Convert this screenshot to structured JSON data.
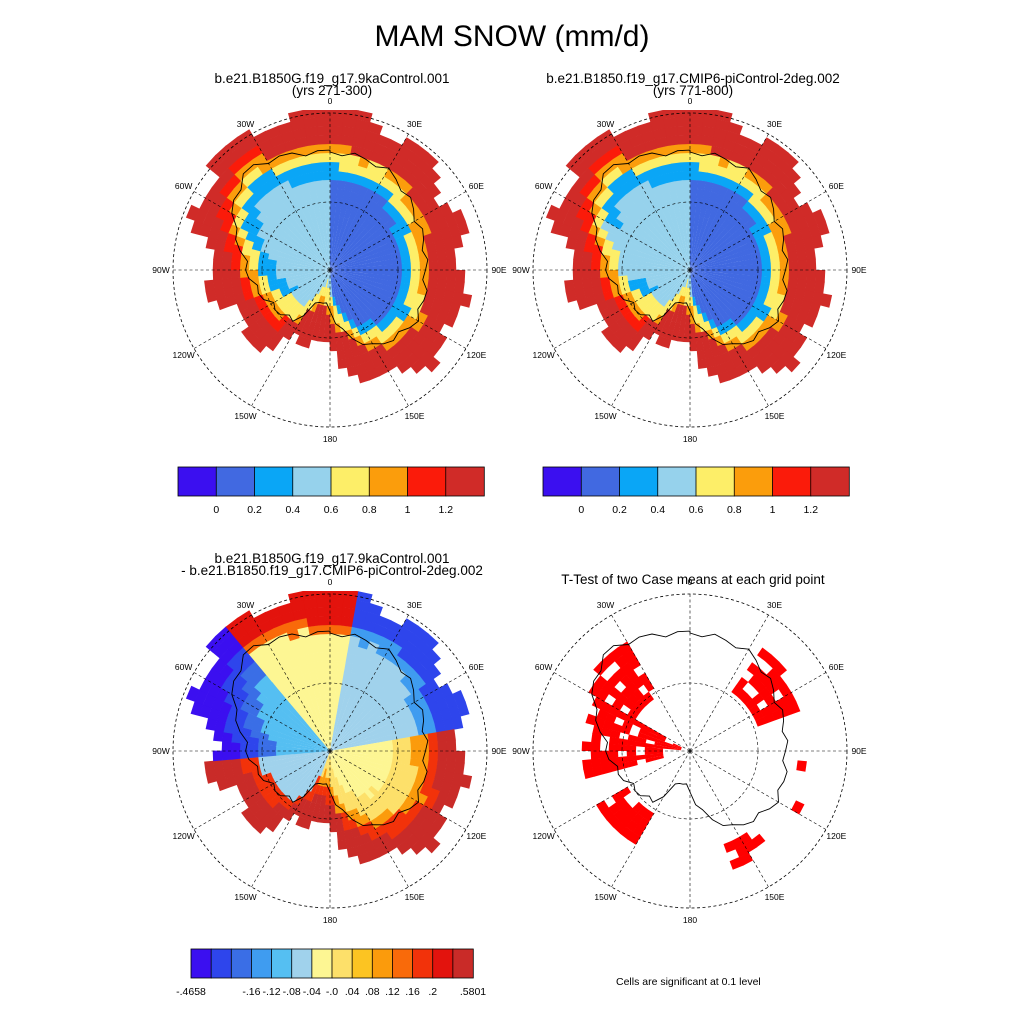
{
  "title": "MAM SNOW (mm/d)",
  "colors": {
    "abs_scale": [
      "#3b0ff0",
      "#4169e1",
      "#0aa6f6",
      "#96d2ec",
      "#fdee68",
      "#fb9d0c",
      "#fb1b0a",
      "#d02b28"
    ],
    "diff_scale": [
      "#3b0ff0",
      "#2e45ec",
      "#3a6ee6",
      "#3f9cf0",
      "#55bff2",
      "#a0d2ec",
      "#fdf693",
      "#fde06a",
      "#fcc422",
      "#fb9b0c",
      "#f96a0a",
      "#f2320a",
      "#e3130d",
      "#c92b28"
    ],
    "signif": "#ff0000",
    "land_line": "#000000"
  },
  "lon_labels": [
    "0",
    "30E",
    "60E",
    "90E",
    "120E",
    "150E",
    "180",
    "150W",
    "120W",
    "90W",
    "60W",
    "30W"
  ],
  "colorbar_abs_ticks": [
    "0",
    "0.2",
    "0.4",
    "0.6",
    "0.8",
    "1",
    "1.2"
  ],
  "colorbar_diff_ticks": [
    "-.4658",
    "-.16",
    "-.12",
    "-.08",
    "-.04",
    "-.0",
    ".04",
    ".08",
    ".12",
    ".16",
    ".2",
    ".5801"
  ],
  "signif_note": "Cells are significant at 0.1 level",
  "chart_data": [
    {
      "type": "heatmap",
      "projection": "south-polar-stereographic",
      "title_line1": "b.e21.B1850G.f19_g17.9kaControl.001",
      "title_line2": "(yrs 271-300)",
      "levels": [
        0,
        0.2,
        0.4,
        0.6,
        0.8,
        1,
        1.2
      ],
      "colorbar": "below"
    },
    {
      "type": "heatmap",
      "projection": "south-polar-stereographic",
      "title_line1": "b.e21.B1850.f19_g17.CMIP6-piControl-2deg.002",
      "title_line2": "(yrs 771-800)",
      "levels": [
        0,
        0.2,
        0.4,
        0.6,
        0.8,
        1,
        1.2
      ],
      "colorbar": "below"
    },
    {
      "type": "heatmap",
      "projection": "south-polar-stereographic",
      "title_line1": "b.e21.B1850G.f19_g17.9kaControl.001",
      "title_line2": "- b.e21.B1850.f19_g17.CMIP6-piControl-2deg.002",
      "levels": [
        -0.4658,
        -0.16,
        -0.12,
        -0.08,
        -0.04,
        -0.0,
        0.04,
        0.08,
        0.12,
        0.16,
        0.2,
        0.5801
      ],
      "colorbar": "below"
    },
    {
      "type": "heatmap",
      "projection": "south-polar-stereographic",
      "title_line1": "T-Test of two Case means at each grid point",
      "significance_level": 0.1
    }
  ]
}
